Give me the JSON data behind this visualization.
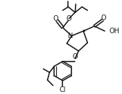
{
  "bg_color": "#ffffff",
  "line_color": "#1a1a1a",
  "line_width": 1.2,
  "figsize": [
    1.76,
    1.36
  ],
  "dpi": 100,
  "xlim": [
    0,
    176
  ],
  "ylim": [
    0,
    136
  ]
}
